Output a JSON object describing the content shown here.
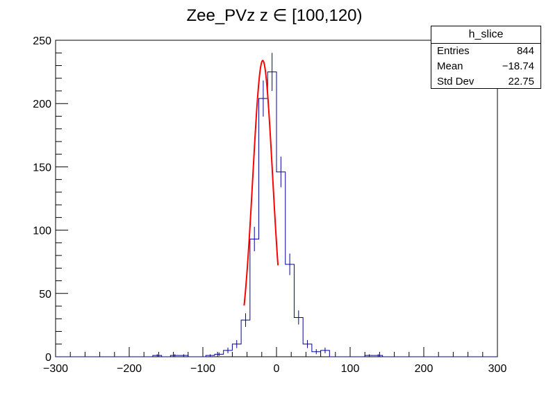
{
  "chart_data": {
    "type": "histogram",
    "title": "Zee_PVz z  ∈ [100,120)",
    "xlim": [
      -300,
      300
    ],
    "ylim": [
      0,
      250
    ],
    "xticks": [
      -300,
      -200,
      -100,
      0,
      100,
      200,
      300
    ],
    "xtick_labels": [
      "−300",
      "−200",
      "−100",
      "0",
      "100",
      "200",
      "300"
    ],
    "yticks": [
      0,
      50,
      100,
      150,
      200,
      250
    ],
    "ytick_labels": [
      "0",
      "50",
      "100",
      "150",
      "200",
      "250"
    ],
    "bin_width": 12,
    "bins": [
      {
        "x0": -168,
        "count": 1
      },
      {
        "x0": -156,
        "count": 0
      },
      {
        "x0": -144,
        "count": 1
      },
      {
        "x0": -132,
        "count": 1
      },
      {
        "x0": -120,
        "count": 0
      },
      {
        "x0": -108,
        "count": 0
      },
      {
        "x0": -96,
        "count": 1
      },
      {
        "x0": -84,
        "count": 2
      },
      {
        "x0": -72,
        "count": 5
      },
      {
        "x0": -60,
        "count": 10
      },
      {
        "x0": -48,
        "count": 29
      },
      {
        "x0": -36,
        "count": 93
      },
      {
        "x0": -24,
        "count": 204
      },
      {
        "x0": -12,
        "count": 225
      },
      {
        "x0": 0,
        "count": 146
      },
      {
        "x0": 12,
        "count": 73
      },
      {
        "x0": 24,
        "count": 31
      },
      {
        "x0": 36,
        "count": 10
      },
      {
        "x0": 48,
        "count": 4
      },
      {
        "x0": 60,
        "count": 5
      },
      {
        "x0": 72,
        "count": 0
      },
      {
        "x0": 84,
        "count": 0
      },
      {
        "x0": 96,
        "count": 0
      },
      {
        "x0": 108,
        "count": 0
      },
      {
        "x0": 120,
        "count": 1
      },
      {
        "x0": 132,
        "count": 1
      }
    ],
    "fit": {
      "type": "gaussian",
      "amplitude": 234,
      "mean": -18.7,
      "sigma": 13.5,
      "x_range": [
        -44,
        2
      ],
      "color": "#ff0000"
    },
    "hist_color": "#000099"
  },
  "stats": {
    "name": "h_slice",
    "rows": [
      {
        "label": "Entries",
        "value": "844"
      },
      {
        "label": "Mean",
        "value": "−18.74"
      },
      {
        "label": "Std Dev",
        "value": "22.75"
      }
    ]
  }
}
